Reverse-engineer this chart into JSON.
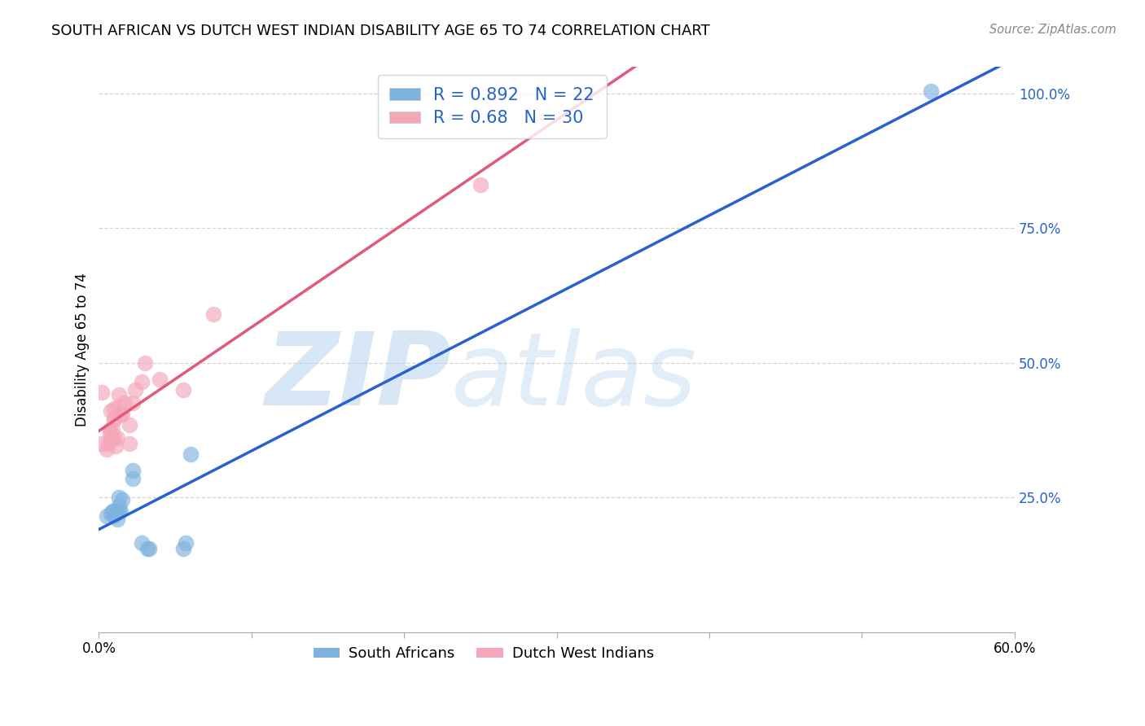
{
  "title": "SOUTH AFRICAN VS DUTCH WEST INDIAN DISABILITY AGE 65 TO 74 CORRELATION CHART",
  "source": "Source: ZipAtlas.com",
  "ylabel": "Disability Age 65 to 74",
  "xlim": [
    0.0,
    0.6
  ],
  "ylim": [
    0.0,
    1.05
  ],
  "sa_R": 0.892,
  "sa_N": 22,
  "dwi_R": 0.68,
  "dwi_N": 30,
  "sa_color": "#7eb3e0",
  "dwi_color": "#f4a7b9",
  "sa_line_color": "#2962cc",
  "dwi_line_color": "#e05a7a",
  "legend_text_color": "#2962cc",
  "background_color": "#ffffff",
  "grid_color": "#d4d4d4",
  "sa_x": [
    0.005,
    0.008,
    0.009,
    0.01,
    0.01,
    0.011,
    0.012,
    0.012,
    0.013,
    0.013,
    0.013,
    0.014,
    0.015,
    0.022,
    0.022,
    0.028,
    0.032,
    0.033,
    0.055,
    0.057,
    0.06,
    0.545
  ],
  "sa_y": [
    0.215,
    0.22,
    0.225,
    0.215,
    0.225,
    0.22,
    0.21,
    0.225,
    0.225,
    0.235,
    0.25,
    0.225,
    0.245,
    0.285,
    0.3,
    0.165,
    0.155,
    0.155,
    0.155,
    0.165,
    0.33,
    1.005
  ],
  "dwi_x": [
    0.002,
    0.002,
    0.005,
    0.006,
    0.007,
    0.007,
    0.008,
    0.008,
    0.009,
    0.01,
    0.01,
    0.01,
    0.01,
    0.011,
    0.012,
    0.013,
    0.013,
    0.014,
    0.015,
    0.017,
    0.02,
    0.02,
    0.022,
    0.024,
    0.028,
    0.03,
    0.04,
    0.055,
    0.075,
    0.25
  ],
  "dwi_y": [
    0.35,
    0.445,
    0.34,
    0.35,
    0.37,
    0.375,
    0.36,
    0.41,
    0.375,
    0.36,
    0.395,
    0.395,
    0.415,
    0.345,
    0.36,
    0.42,
    0.44,
    0.405,
    0.405,
    0.425,
    0.35,
    0.385,
    0.425,
    0.45,
    0.465,
    0.5,
    0.47,
    0.45,
    0.59,
    0.83
  ],
  "xtick_positions": [
    0.0,
    0.1,
    0.2,
    0.3,
    0.4,
    0.5,
    0.6
  ],
  "xtick_labels": [
    "0.0%",
    "",
    "",
    "",
    "",
    "",
    "60.0%"
  ],
  "right_ytick_positions": [
    0.25,
    0.5,
    0.75,
    1.0
  ],
  "right_ytick_labels": [
    "25.0%",
    "50.0%",
    "75.0%",
    "100.0%"
  ],
  "sa_line_x": [
    0.0,
    0.6
  ],
  "sa_line_y_intercept": 0.165,
  "sa_line_slope": 1.41,
  "dwi_line_x": [
    0.0,
    0.6
  ],
  "dwi_line_y_intercept": 0.335,
  "dwi_line_slope": 1.83
}
